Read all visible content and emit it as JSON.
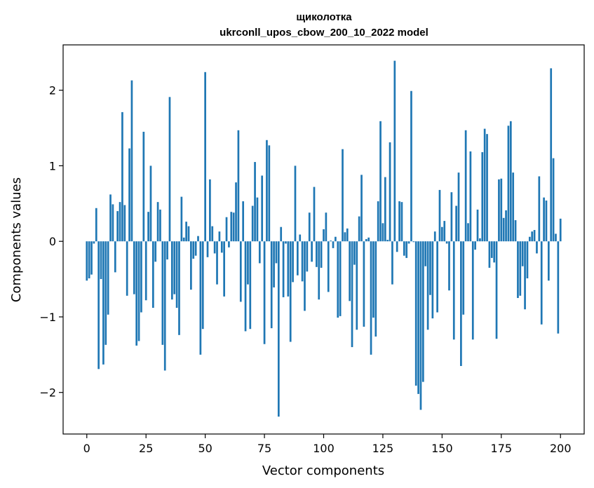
{
  "chart_data": {
    "type": "bar",
    "title_line1": "щиколотка",
    "title_line2": "ukrconll_upos_cbow_200_10_2022 model",
    "xlabel": "Vector components",
    "ylabel": "Components values",
    "xlim": [
      -10,
      210
    ],
    "ylim": [
      -2.55,
      2.6
    ],
    "xticks": [
      0,
      25,
      50,
      75,
      100,
      125,
      150,
      175,
      200
    ],
    "yticks": [
      -2,
      -1,
      0,
      1,
      2
    ],
    "ytick_labels": [
      "−2",
      "−1",
      "0",
      "1",
      "2"
    ],
    "bar_color": "#1f77b4",
    "values": [
      -0.52,
      -0.49,
      -0.44,
      -0.03,
      0.44,
      -1.69,
      -0.5,
      -1.63,
      -1.37,
      -0.97,
      0.62,
      0.49,
      -0.41,
      0.4,
      0.52,
      1.71,
      0.48,
      -0.72,
      1.23,
      2.13,
      -0.7,
      -1.38,
      -1.32,
      -0.94,
      1.45,
      -0.78,
      0.39,
      1.0,
      -0.88,
      -0.27,
      0.52,
      0.42,
      -1.37,
      -1.71,
      -0.24,
      1.91,
      -0.77,
      -0.7,
      -0.88,
      -1.24,
      0.59,
      0.05,
      0.26,
      0.2,
      -0.64,
      -0.23,
      -0.19,
      0.07,
      -1.5,
      -1.16,
      2.24,
      -0.21,
      0.82,
      0.2,
      -0.16,
      -0.57,
      0.13,
      -0.15,
      -0.73,
      0.32,
      -0.08,
      0.39,
      0.38,
      0.78,
      1.47,
      -0.8,
      0.53,
      -1.19,
      -0.57,
      -1.16,
      0.47,
      1.05,
      0.58,
      -0.29,
      0.87,
      -1.36,
      1.34,
      1.27,
      -1.15,
      -0.61,
      -0.29,
      -2.32,
      0.19,
      -0.74,
      -0.03,
      -0.73,
      -1.33,
      -0.54,
      1.0,
      -0.45,
      0.09,
      -0.53,
      -0.92,
      -0.4,
      0.38,
      -0.27,
      0.72,
      -0.34,
      -0.77,
      -0.35,
      0.16,
      0.38,
      -0.67,
      0.01,
      -0.09,
      0.06,
      -1.01,
      -0.99,
      1.22,
      0.12,
      0.17,
      -0.79,
      -1.4,
      -0.31,
      -1.17,
      0.33,
      0.88,
      -1.13,
      0.03,
      0.05,
      -1.5,
      -1.01,
      -1.26,
      0.53,
      1.59,
      0.24,
      0.85,
      0.02,
      1.31,
      -0.57,
      2.39,
      -0.14,
      0.53,
      0.52,
      -0.19,
      -0.22,
      -0.03,
      1.99,
      -0.01,
      -1.91,
      -2.02,
      -2.23,
      -1.86,
      -0.33,
      -1.17,
      -0.71,
      -1.02,
      0.13,
      -0.94,
      0.68,
      0.19,
      0.27,
      -0.03,
      -0.65,
      0.65,
      -1.3,
      0.47,
      0.91,
      -1.65,
      -0.97,
      1.47,
      0.24,
      1.19,
      -1.3,
      -0.11,
      0.42,
      0.04,
      1.18,
      1.49,
      1.42,
      -0.35,
      -0.22,
      -0.28,
      -1.29,
      0.82,
      0.83,
      0.31,
      0.41,
      1.53,
      1.59,
      0.91,
      0.28,
      -0.75,
      -0.72,
      -0.33,
      -0.9,
      -0.49,
      0.06,
      0.13,
      0.15,
      -0.16,
      0.86,
      -1.1,
      0.58,
      0.54,
      -0.52,
      2.29,
      1.1,
      0.1,
      -1.22,
      0.3
    ]
  }
}
